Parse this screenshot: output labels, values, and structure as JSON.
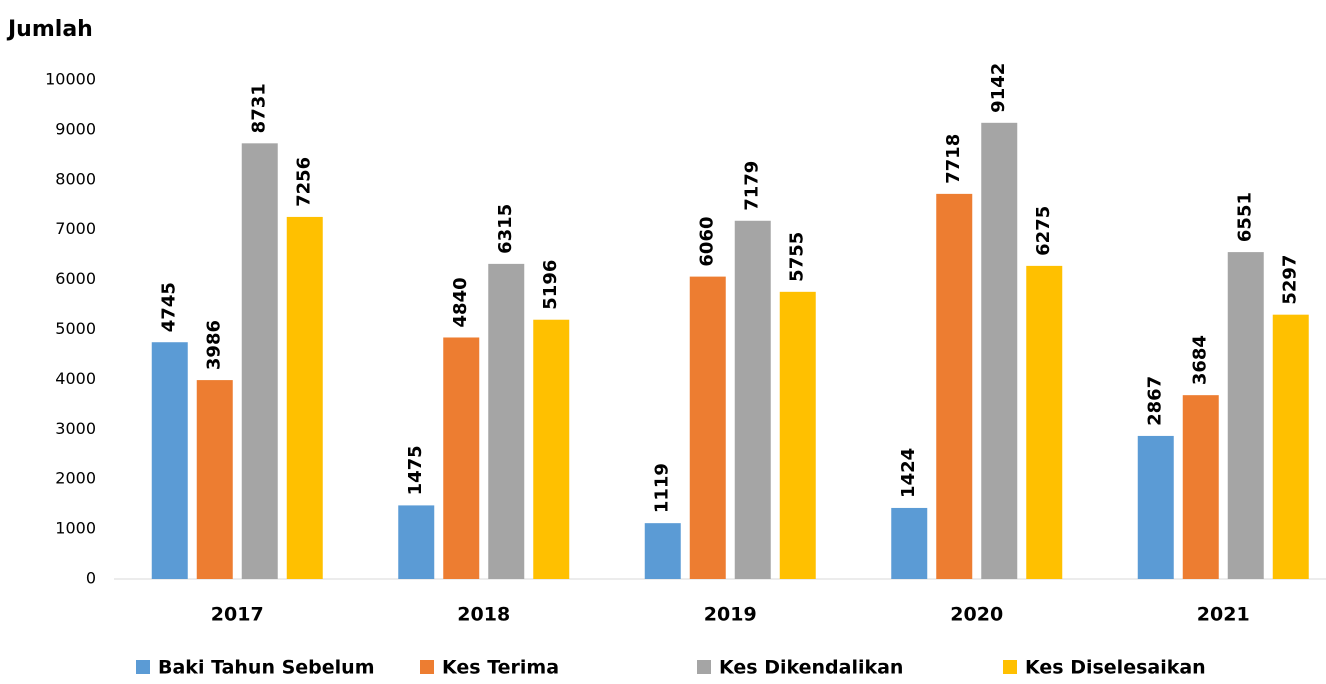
{
  "chart_data": {
    "type": "bar",
    "y_label": "Jumlah",
    "categories": [
      "2017",
      "2018",
      "2019",
      "2020",
      "2021"
    ],
    "series": [
      {
        "name": "Baki Tahun Sebelum",
        "color": "#5b9bd5",
        "values": [
          4745,
          1475,
          1119,
          1424,
          2867
        ]
      },
      {
        "name": "Kes Terima",
        "color": "#ed7d31",
        "values": [
          3986,
          4840,
          6060,
          7718,
          3684
        ]
      },
      {
        "name": "Kes Dikendalikan",
        "color": "#a5a5a5",
        "values": [
          8731,
          6315,
          7179,
          9142,
          6551
        ]
      },
      {
        "name": "Kes Diselesaikan",
        "color": "#ffc000",
        "values": [
          7256,
          5196,
          5755,
          6275,
          5297
        ]
      }
    ],
    "ylim": [
      0,
      10000
    ],
    "yticks": [
      0,
      1000,
      2000,
      3000,
      4000,
      5000,
      6000,
      7000,
      8000,
      9000,
      10000
    ],
    "grid": false,
    "legend": "bottom"
  }
}
